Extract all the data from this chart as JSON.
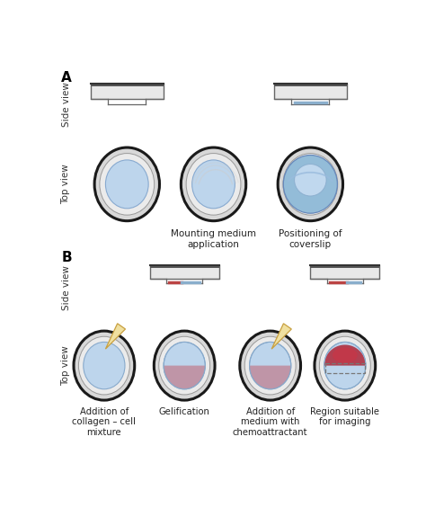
{
  "bg_color": "#ffffff",
  "label_A": "A",
  "label_B": "B",
  "side_view_label": "Side view",
  "top_view_label": "Top view",
  "panel_A_captions": [
    "Mounting medium\napplication",
    "Positioning of\ncoverslip"
  ],
  "panel_B_captions": [
    "Addition of\ncollagen – cell\nmixture",
    "Gelification",
    "Addition of\nmedium with\nchemoattractant",
    "Region suitable\nfor imaging"
  ],
  "dish_outer_dark": "#1a1a1a",
  "dish_gray": "#d8d8d8",
  "dish_inner_white": "#efefef",
  "blue_light": "#bdd5ec",
  "blue_medium": "#93bcd8",
  "blue_dark": "#6699cc",
  "red_medium": "#c08090",
  "red_dark": "#b03040",
  "slide_body_color": "#e8e8e8",
  "slide_top_color": "#aaaaaa",
  "slide_border": "#666666",
  "coverslip_blue": "#8aaecc",
  "coverslip_red": "#bb4444",
  "pipette_fill": "#f0e0a0",
  "pipette_edge": "#c8a040",
  "dashed_color": "#777777"
}
